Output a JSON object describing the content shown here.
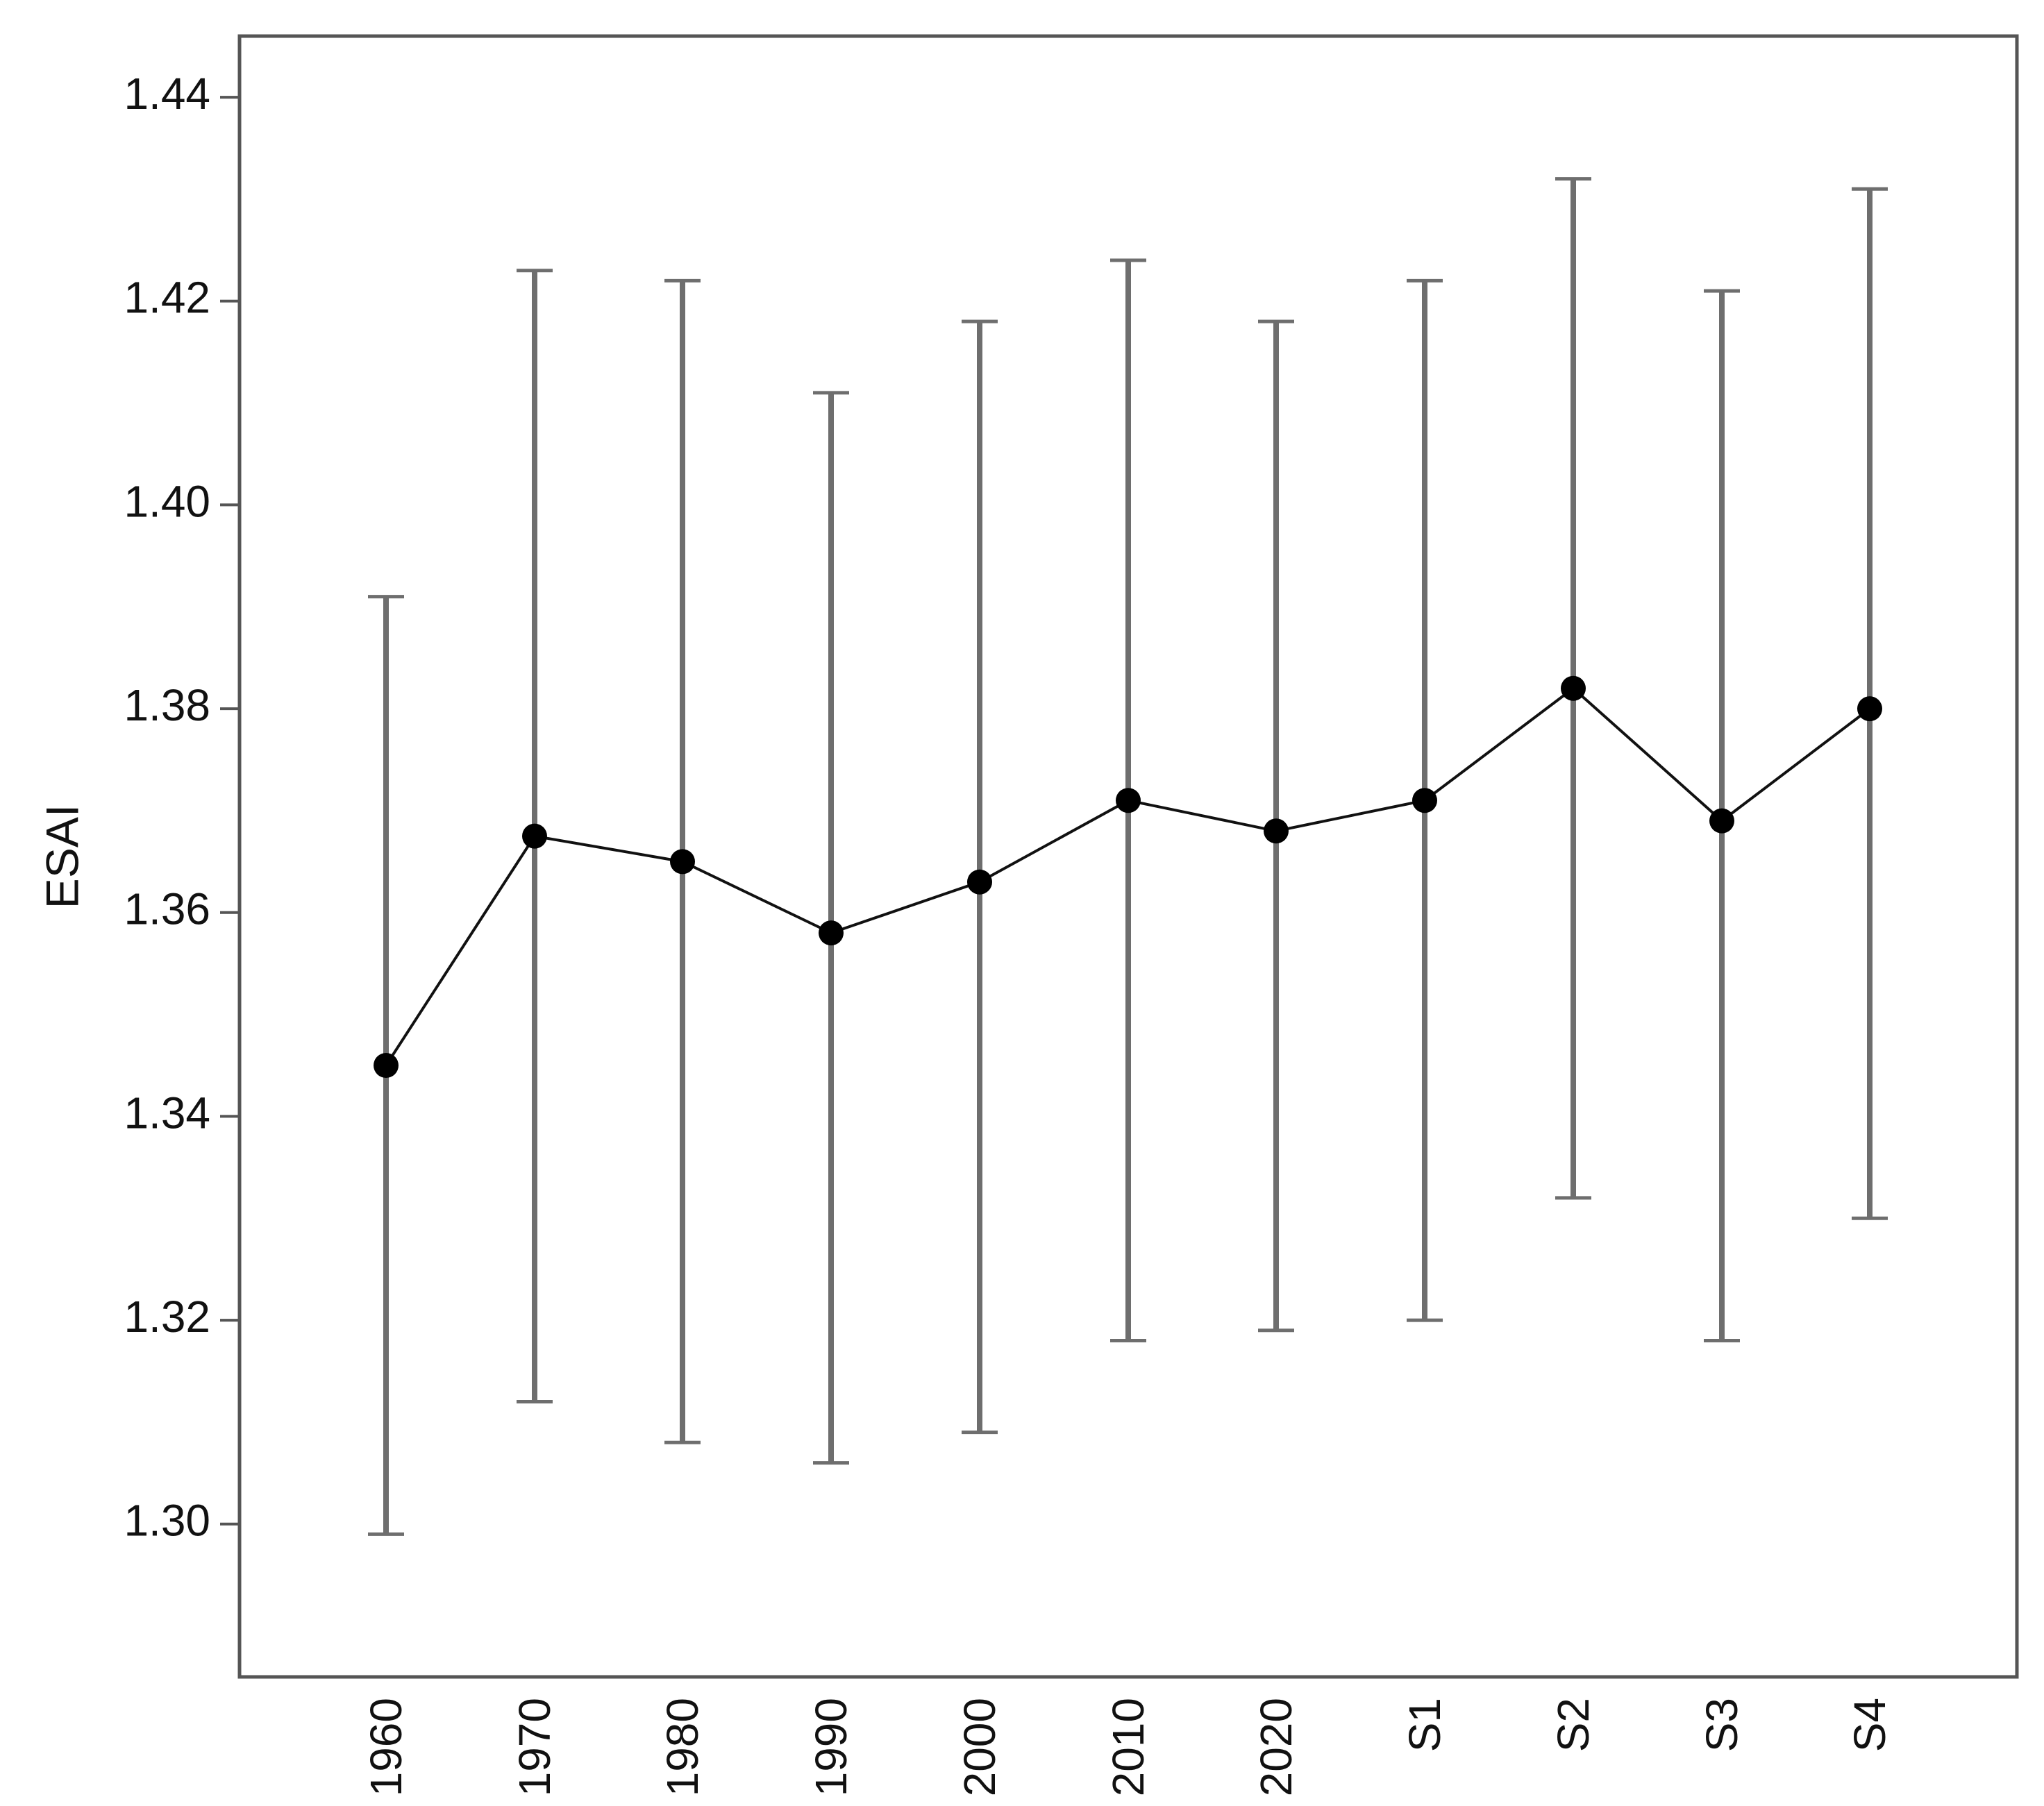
{
  "chart_data": {
    "type": "line",
    "title": "",
    "xlabel": "",
    "ylabel": "ESAI",
    "ylim": [
      1.285,
      1.446
    ],
    "yticks": [
      "1.30",
      "1.32",
      "1.34",
      "1.36",
      "1.38",
      "1.40",
      "1.42",
      "1.44"
    ],
    "categories": [
      "1960",
      "1970",
      "1980",
      "1990",
      "2000",
      "2010",
      "2020",
      "S1",
      "S2",
      "S3",
      "S4"
    ],
    "series": [
      {
        "values": [
          1.345,
          1.3675,
          1.365,
          1.358,
          1.363,
          1.371,
          1.368,
          1.371,
          1.382,
          1.369,
          1.38
        ],
        "error_low": [
          1.299,
          1.312,
          1.308,
          1.306,
          1.309,
          1.318,
          1.319,
          1.32,
          1.332,
          1.318,
          1.33
        ],
        "error_high": [
          1.391,
          1.423,
          1.422,
          1.411,
          1.418,
          1.424,
          1.418,
          1.422,
          1.432,
          1.421,
          1.431
        ]
      }
    ],
    "grid": false,
    "legend": "none",
    "colors": {
      "line": "#111111",
      "marker": "#000000",
      "error_bar": "#6e6e6e",
      "frame": "#555555"
    }
  }
}
